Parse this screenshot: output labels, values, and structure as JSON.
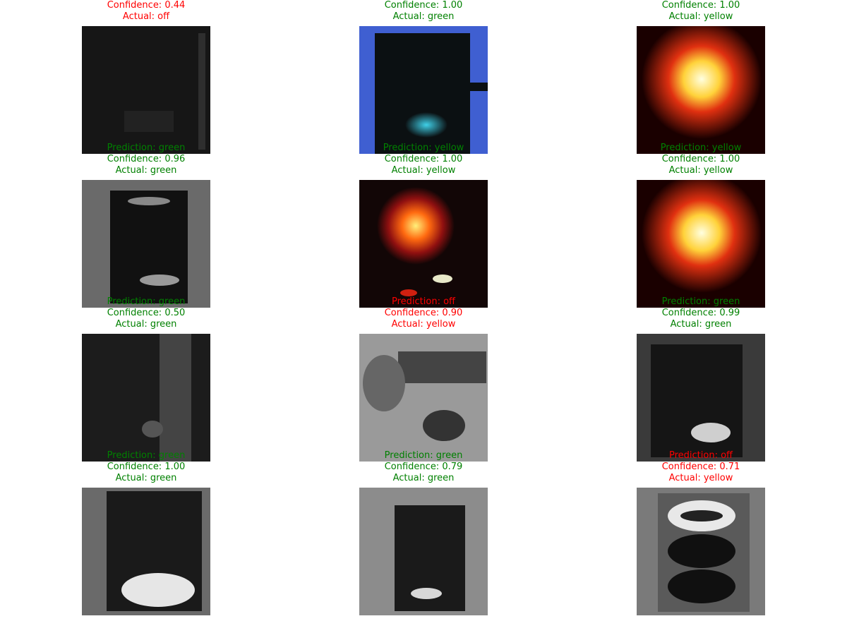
{
  "colors": {
    "correct": "#008000",
    "incorrect": "#ff0000"
  },
  "panels": [
    {
      "prediction": "",
      "confidence": "Confidence: 0.44",
      "actual": "Actual: off",
      "correct": false,
      "thumb": "dark-gray"
    },
    {
      "prediction": "",
      "confidence": "Confidence: 1.00",
      "actual": "Actual: green",
      "correct": true,
      "thumb": "blue-green"
    },
    {
      "prediction": "",
      "confidence": "Confidence: 1.00",
      "actual": "Actual: yellow",
      "correct": true,
      "thumb": "yellow-glow"
    },
    {
      "prediction": "Prediction: green",
      "confidence": "Confidence: 0.96",
      "actual": "Actual: green",
      "correct": true,
      "thumb": "gray-housing"
    },
    {
      "prediction": "Prediction: yellow",
      "confidence": "Confidence: 1.00",
      "actual": "Actual: yellow",
      "correct": true,
      "thumb": "red-yellow"
    },
    {
      "prediction": "Prediction: yellow",
      "confidence": "Confidence: 1.00",
      "actual": "Actual: yellow",
      "correct": true,
      "thumb": "yellow-glow"
    },
    {
      "prediction": "Prediction: green",
      "confidence": "Confidence: 0.50",
      "actual": "Actual: green",
      "correct": true,
      "thumb": "gray-dark"
    },
    {
      "prediction": "Prediction: off",
      "confidence": "Confidence: 0.90",
      "actual": "Actual: yellow",
      "correct": false,
      "thumb": "gray-light"
    },
    {
      "prediction": "Prediction: green",
      "confidence": "Confidence: 0.99",
      "actual": "Actual: green",
      "correct": true,
      "thumb": "gray-bottom-lit"
    },
    {
      "prediction": "Prediction: green",
      "confidence": "Confidence: 1.00",
      "actual": "Actual: green",
      "correct": true,
      "thumb": "gray-oval"
    },
    {
      "prediction": "Prediction: green",
      "confidence": "Confidence: 0.79",
      "actual": "Actual: green",
      "correct": true,
      "thumb": "gray-box"
    },
    {
      "prediction": "Prediction: off",
      "confidence": "Confidence: 0.71",
      "actual": "Actual: yellow",
      "correct": false,
      "thumb": "gray-three"
    }
  ]
}
